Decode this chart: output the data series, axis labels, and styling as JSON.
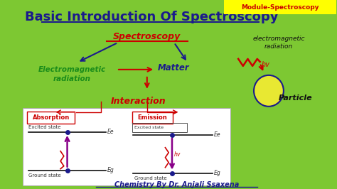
{
  "background_color": "#7dc832",
  "title": "Basic Introduction Of Spectroscopy",
  "title_color": "#1a1a8c",
  "module_label": "Module-Spectroscopy",
  "module_bg": "#ffff00",
  "module_color": "#cc0000",
  "spectroscopy_label": "Spectroscopy",
  "spectroscopy_color": "#cc0000",
  "em_radiation_label": "Electromagnetic\nradiation",
  "em_radiation_color": "#1a8c1a",
  "matter_label": "Matter",
  "matter_color": "#1a1a8c",
  "interaction_label": "Interaction",
  "interaction_color": "#cc0000",
  "em_radiation_right_label": "electromagnetic\nradiation",
  "em_radiation_right_color": "#111111",
  "hv_label": "hv",
  "particle_label": "Particle",
  "particle_color": "#111111",
  "absorption_label": "Absorption",
  "absorption_color": "#cc0000",
  "emission_label": "Emission",
  "emission_color": "#cc0000",
  "excited_state_label": "Excited state",
  "ground_state_label": "Ground state",
  "footer": "Chemistry By Dr. Anjali Ssaxena",
  "footer_color": "#1a1a8c",
  "white_box_color": "#ffffff",
  "arrow_color_blue": "#1a1a8c",
  "arrow_color_red": "#cc0000",
  "zigzag_color": "#cc0000",
  "dot_color": "#1a1a8c",
  "level_color": "#111111",
  "particle_circle_color": "#e8e832",
  "particle_circle_edge": "#1a1a8c",
  "purple_arrow": "#880088"
}
